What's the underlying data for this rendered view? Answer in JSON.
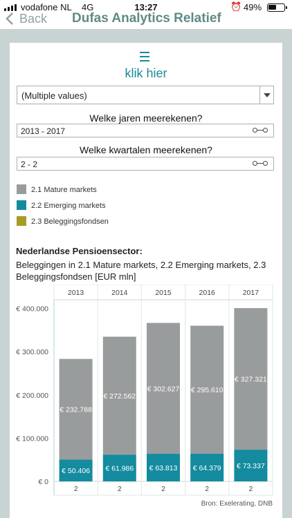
{
  "status_bar": {
    "carrier": "vodafone NL",
    "network": "4G",
    "time": "13:27",
    "battery": "49%",
    "battery_level": 0.49,
    "alarm_icon": "alarm-clock-icon"
  },
  "nav": {
    "back_label": "Back",
    "title": "Dufas Analytics Relatief"
  },
  "menu": {
    "icon": "hamburger-menu-icon",
    "label": "klik hier"
  },
  "select": {
    "value": "(Multiple values)"
  },
  "filters": {
    "years_title": "Welke jaren meerekenen?",
    "years_value": "2013 - 2017",
    "quarters_title": "Welke kwartalen meerekenen?",
    "quarters_value": "2 - 2"
  },
  "legend": [
    {
      "label": "2.1 Mature markets",
      "color": "#999c9c"
    },
    {
      "label": "2.2 Emerging markets",
      "color": "#148b9e"
    },
    {
      "label": "2.3 Beleggingsfondsen",
      "color": "#a79b28"
    }
  ],
  "heading": {
    "sector": "Nederlandse Pensioensector:",
    "subtitle": "Beleggingen in  2.1 Mature markets, 2.2 Emerging markets, 2.3 Beleggingsfondsen [EUR mln]"
  },
  "chart_data": {
    "type": "bar",
    "stacked": true,
    "categories": [
      "2013",
      "2014",
      "2015",
      "2016",
      "2017"
    ],
    "bottom_labels": [
      "2",
      "2",
      "2",
      "2",
      "2"
    ],
    "series": [
      {
        "name": "2.2 Emerging markets",
        "color": "#148b9e",
        "values": [
          50406,
          61986,
          63813,
          64379,
          73337
        ],
        "labels": [
          "€ 50.406",
          "€ 61.986",
          "€ 63.813",
          "€ 64.379",
          "€ 73.337"
        ]
      },
      {
        "name": "2.1 Mature markets",
        "color": "#999c9c",
        "values": [
          232788,
          272562,
          302627,
          295610,
          327321
        ],
        "labels": [
          "€ 232.788",
          "€ 272.562",
          "€ 302.627",
          "€ 295.610",
          "€ 327.321"
        ]
      }
    ],
    "y_ticks": [
      0,
      100000,
      200000,
      300000,
      400000
    ],
    "y_tick_labels": [
      "€ 0",
      "€ 100.000",
      "€ 200.000",
      "€ 300.000",
      "€ 400.000"
    ],
    "ylim": [
      0,
      420000
    ],
    "grid": false,
    "source": "Bron: Exelerating, DNB"
  }
}
